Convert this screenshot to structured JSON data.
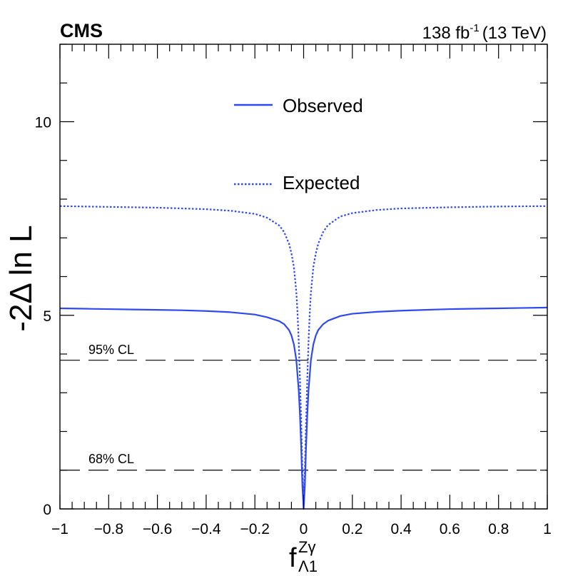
{
  "chart_data": {
    "type": "line",
    "experiment": "CMS",
    "lumi_value": "138 fb",
    "lumi_exp": "-1",
    "lumi_energy": "(13 TeV)",
    "ylabel": "-2Δ ln L",
    "xlabel": {
      "base": "f",
      "sup": "Zγ",
      "sub": "Λ1"
    },
    "xlim": [
      -1,
      1
    ],
    "ylim": [
      0,
      12
    ],
    "x_ticks": [
      -1,
      -0.8,
      -0.6,
      -0.4,
      -0.2,
      0,
      0.2,
      0.4,
      0.6,
      0.8,
      1
    ],
    "x_tick_labels": [
      "−1",
      "−0.8",
      "−0.6",
      "−0.4",
      "−0.2",
      "0",
      "0.2",
      "0.4",
      "0.6",
      "0.8",
      "1"
    ],
    "y_ticks": [
      0,
      5,
      10
    ],
    "y_tick_labels": [
      "0",
      "5",
      "10"
    ],
    "series": [
      {
        "name": "Observed",
        "color": "#2f49f0",
        "style": "solid",
        "x": [
          -1,
          -0.9,
          -0.8,
          -0.7,
          -0.6,
          -0.5,
          -0.4,
          -0.3,
          -0.2,
          -0.15,
          -0.1,
          -0.08,
          -0.06,
          -0.05,
          -0.04,
          -0.03,
          -0.02,
          -0.015,
          -0.01,
          -0.005,
          0,
          0.005,
          0.01,
          0.015,
          0.02,
          0.03,
          0.04,
          0.05,
          0.06,
          0.08,
          0.1,
          0.15,
          0.2,
          0.3,
          0.4,
          0.5,
          0.6,
          0.7,
          0.8,
          0.9,
          1
        ],
        "y": [
          5.18,
          5.17,
          5.16,
          5.15,
          5.14,
          5.13,
          5.11,
          5.08,
          5.02,
          4.95,
          4.85,
          4.77,
          4.62,
          4.48,
          4.25,
          3.85,
          3.05,
          2.42,
          1.6,
          0.58,
          0.0,
          0.58,
          1.6,
          2.42,
          3.05,
          3.85,
          4.25,
          4.48,
          4.62,
          4.77,
          4.86,
          4.98,
          5.04,
          5.09,
          5.12,
          5.14,
          5.16,
          5.17,
          5.18,
          5.19,
          5.2
        ]
      },
      {
        "name": "Expected",
        "color": "#2f49f0",
        "style": "dotted",
        "x": [
          -1,
          -0.8,
          -0.6,
          -0.4,
          -0.3,
          -0.2,
          -0.15,
          -0.1,
          -0.08,
          -0.06,
          -0.05,
          -0.04,
          -0.03,
          -0.025,
          -0.02,
          -0.015,
          -0.01,
          -0.005,
          0,
          0.005,
          0.01,
          0.015,
          0.02,
          0.025,
          0.03,
          0.04,
          0.05,
          0.06,
          0.08,
          0.1,
          0.15,
          0.2,
          0.3,
          0.4,
          0.6,
          0.8,
          1
        ],
        "y": [
          7.82,
          7.8,
          7.78,
          7.74,
          7.7,
          7.62,
          7.52,
          7.32,
          7.15,
          6.85,
          6.6,
          6.25,
          5.6,
          5.05,
          4.3,
          3.35,
          2.25,
          1.0,
          0.3,
          1.0,
          2.25,
          3.35,
          4.3,
          5.05,
          5.6,
          6.25,
          6.6,
          6.85,
          7.15,
          7.33,
          7.55,
          7.64,
          7.72,
          7.76,
          7.79,
          7.81,
          7.82
        ]
      }
    ],
    "reference_lines": [
      {
        "label": "95% CL",
        "y": 3.84
      },
      {
        "label": "68% CL",
        "y": 1.0
      }
    ],
    "legend": [
      {
        "label": "Observed",
        "style": "solid"
      },
      {
        "label": "Expected",
        "style": "dotted"
      }
    ],
    "legend_position": "top-center"
  }
}
